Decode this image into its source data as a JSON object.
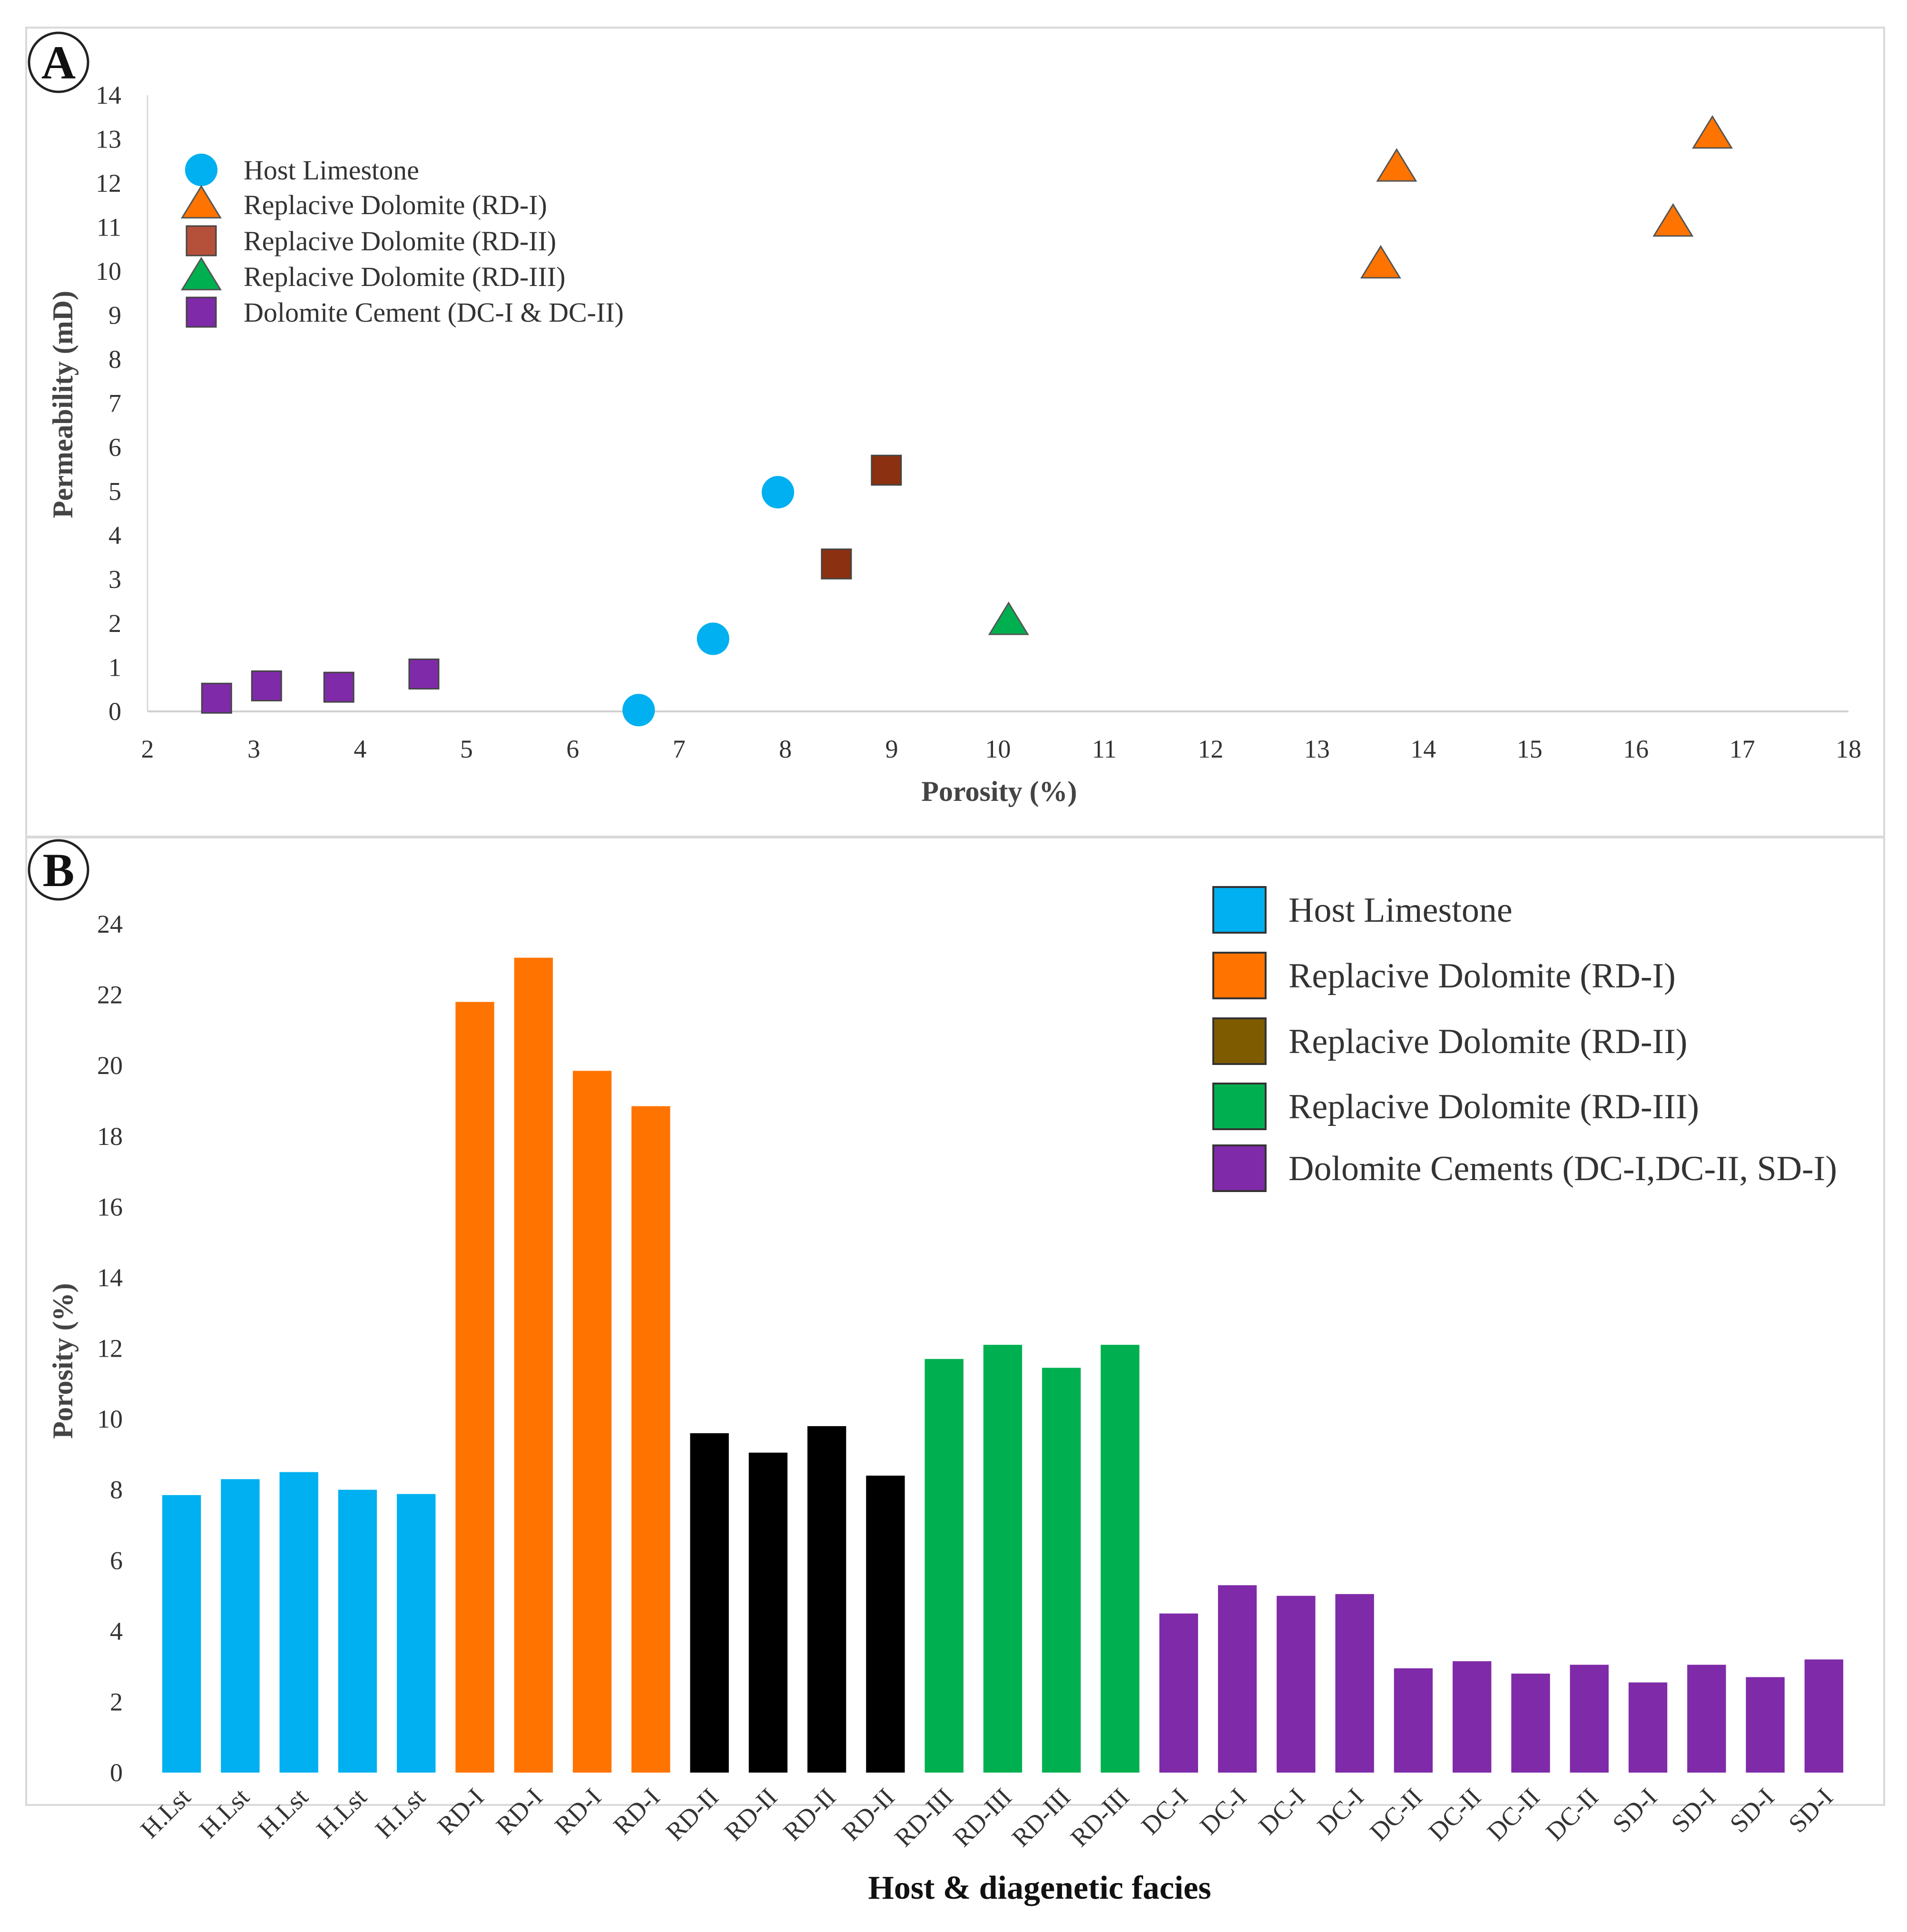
{
  "colors": {
    "host": "#00b0f0",
    "rd1": "#ff7400",
    "rd2_scatter": "#8b3010",
    "rd2_bar": "#7f5b00",
    "rd3": "#00b050",
    "dc": "#7f2aa8"
  },
  "chart_data": [
    {
      "type": "scatter",
      "panel_label": "A",
      "xlabel": "Porosity (%)",
      "ylabel": "Permeability (mD)",
      "xlim": [
        2,
        18
      ],
      "ylim": [
        0,
        14
      ],
      "x_ticks": [
        "2",
        "3",
        "4",
        "5",
        "6",
        "7",
        "8",
        "9",
        "10",
        "11",
        "12",
        "13",
        "14",
        "15",
        "16",
        "17",
        "18"
      ],
      "y_ticks": [
        "0",
        "1",
        "2",
        "3",
        "4",
        "5",
        "6",
        "7",
        "8",
        "9",
        "10",
        "11",
        "12",
        "13",
        "14"
      ],
      "legend": [
        {
          "label": "Host Limestone",
          "marker": "circle",
          "color": "#00b0f0"
        },
        {
          "label": "Replacive Dolomite (RD-I)",
          "marker": "triangle",
          "color": "#ff7400"
        },
        {
          "label": "Replacive Dolomite (RD-II)",
          "marker": "square",
          "color": "#b5503a"
        },
        {
          "label": "Replacive Dolomite (RD-III)",
          "marker": "triangle",
          "color": "#00b050"
        },
        {
          "label": "Dolomite Cement (DC-I & DC-II)",
          "marker": "square",
          "color": "#7f2aa8"
        }
      ],
      "series": [
        {
          "name": "Host Limestone",
          "marker": "circle",
          "color": "#00b0f0",
          "points": [
            [
              6.62,
              0.03
            ],
            [
              7.32,
              1.65
            ],
            [
              7.93,
              4.98
            ]
          ]
        },
        {
          "name": "Replacive Dolomite (RD-I)",
          "marker": "triangle",
          "color": "#ff7400",
          "points": [
            [
              13.6,
              10.15
            ],
            [
              13.75,
              12.35
            ],
            [
              16.35,
              11.1
            ],
            [
              16.72,
              13.1
            ]
          ]
        },
        {
          "name": "Replacive Dolomite (RD-II)",
          "marker": "square",
          "color": "#8b3010",
          "points": [
            [
              8.48,
              3.35
            ],
            [
              8.95,
              5.48
            ]
          ]
        },
        {
          "name": "Replacive Dolomite (RD-III)",
          "marker": "triangle",
          "color": "#00b050",
          "points": [
            [
              10.1,
              2.05
            ]
          ]
        },
        {
          "name": "Dolomite Cement (DC-I & DC-II)",
          "marker": "square",
          "color": "#7f2aa8",
          "points": [
            [
              2.65,
              0.3
            ],
            [
              3.12,
              0.58
            ],
            [
              3.8,
              0.55
            ],
            [
              4.6,
              0.85
            ]
          ]
        }
      ]
    },
    {
      "type": "bar",
      "panel_label": "B",
      "xlabel": "Host & diagenetic facies",
      "ylabel": "Porosity (%)",
      "ylim": [
        0,
        24
      ],
      "y_ticks": [
        "0",
        "2",
        "4",
        "6",
        "8",
        "10",
        "12",
        "14",
        "16",
        "18",
        "20",
        "22",
        "24"
      ],
      "legend": [
        {
          "label": "Host Limestone",
          "color": "#00b0f0"
        },
        {
          "label": "Replacive Dolomite (RD-I)",
          "color": "#ff7400"
        },
        {
          "label": "Replacive Dolomite (RD-II)",
          "color": "#7f5b00"
        },
        {
          "label": "Replacive Dolomite (RD-III)",
          "color": "#00b050"
        },
        {
          "label": "Dolomite Cements (DC-I,DC-II, SD-I)",
          "color": "#7f2aa8"
        }
      ],
      "categories": [
        "H.Lst",
        "H.Lst",
        "H.Lst",
        "H.Lst",
        "H.Lst",
        "RD-I",
        "RD-I",
        "RD-I",
        "RD-I",
        "RD-II",
        "RD-II",
        "RD-II",
        "RD-II",
        "RD-III",
        "RD-III",
        "RD-III",
        "RD-III",
        "DC-I",
        "DC-I",
        "DC-I",
        "DC-I",
        "DC-II",
        "DC-II",
        "DC-II",
        "DC-II",
        "SD-I",
        "SD-I",
        "SD-I",
        "SD-I"
      ],
      "values": [
        7.85,
        8.3,
        8.5,
        8.0,
        7.88,
        21.8,
        23.05,
        19.85,
        18.85,
        9.6,
        9.05,
        9.8,
        8.4,
        11.7,
        12.1,
        11.45,
        12.1,
        4.5,
        5.3,
        5.0,
        5.05,
        2.95,
        3.15,
        2.8,
        3.05,
        2.55,
        3.05,
        2.7,
        3.2
      ],
      "bar_groups": [
        "host",
        "host",
        "host",
        "host",
        "host",
        "rd1",
        "rd1",
        "rd1",
        "rd1",
        "rd2",
        "rd2",
        "rd2",
        "rd2",
        "rd3",
        "rd3",
        "rd3",
        "rd3",
        "dc",
        "dc",
        "dc",
        "dc",
        "dc",
        "dc",
        "dc",
        "dc",
        "dc",
        "dc",
        "dc",
        "dc"
      ]
    }
  ]
}
